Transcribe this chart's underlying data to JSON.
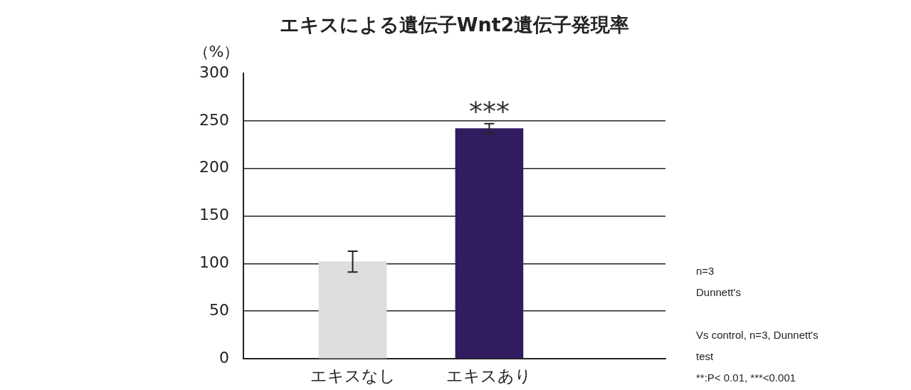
{
  "chart_data": {
    "type": "bar",
    "title": "エキスによる遺伝子Wnt2遺伝子発現率",
    "ylabel": "（%）",
    "categories": [
      "エキスなし",
      "エキスあり"
    ],
    "values": [
      102,
      242
    ],
    "errors": [
      11,
      5
    ],
    "colors": [
      "#dcdddc",
      "#301c5e"
    ],
    "ylim": [
      0,
      300
    ],
    "yticks": [
      0,
      50,
      100,
      150,
      200,
      250,
      300
    ],
    "grid": "y",
    "legend": false,
    "annotations": [
      "***",
      "n=3\nDunnett's",
      "Vs control, n=3, Dunnett's test\n**:P< 0.01, ***<0.001"
    ]
  }
}
